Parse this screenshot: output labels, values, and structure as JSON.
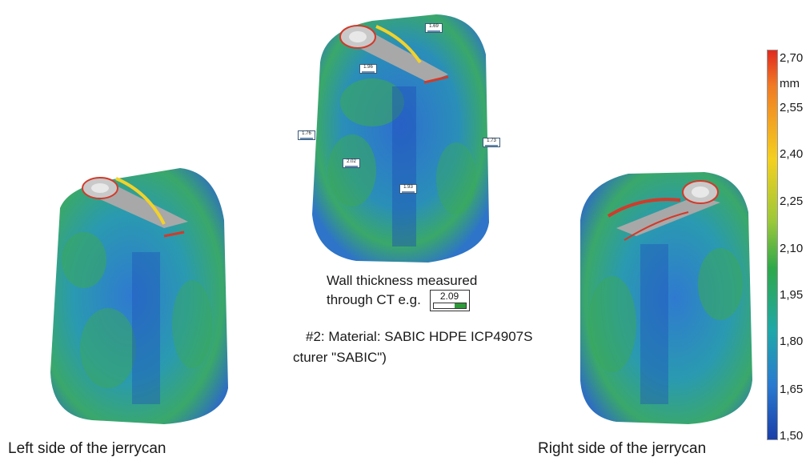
{
  "captions": {
    "left": "Left side of the jerrycan",
    "right": "Right side of the jerrycan"
  },
  "annotation": {
    "line1": "Wall thickness measured",
    "line2": "through CT e.g.",
    "example_value": "2.09",
    "material": "#2:  Material: SABIC HDPE ICP4907S",
    "manufacturer": "cturer \"SABIC\")"
  },
  "callouts": [
    "1.69",
    "1.96",
    "1.76",
    "2.02",
    "1.93",
    "1.73"
  ],
  "scale": {
    "unit": "mm",
    "ticks": [
      "2,70",
      "2,55",
      "2,40",
      "2,25",
      "2,10",
      "1,95",
      "1,80",
      "1,65",
      "1,50"
    ],
    "colors": [
      "#e02a1f",
      "#f4d020",
      "#2ea84a",
      "#1fa8a8",
      "#1a3fa8"
    ]
  }
}
